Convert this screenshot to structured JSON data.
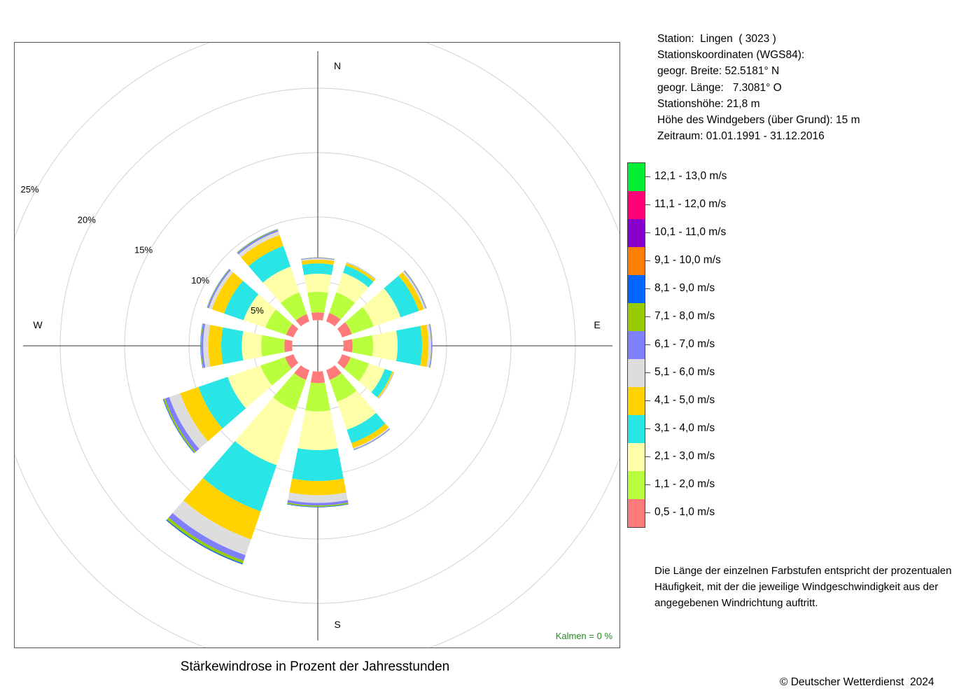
{
  "chart_data": {
    "type": "polar-bar",
    "title": "Stärkewindrose in Prozent der Jahresstunden",
    "directions": [
      0,
      30,
      60,
      90,
      120,
      150,
      180,
      210,
      240,
      270,
      300,
      330
    ],
    "direction_labels": [
      "N",
      "E",
      "S",
      "W"
    ],
    "radial_ticks": [
      "5%",
      "10%",
      "15%",
      "20%",
      "25%"
    ],
    "radial_tick_values": [
      5,
      10,
      15,
      20,
      25
    ],
    "inner_radius_pct": 2.0,
    "calm_label": "Kalmen  =  0 %",
    "calm_color": "#228B22",
    "series": [
      {
        "name": "0,5 - 1,0 m/s",
        "color": "#FF7B7B",
        "values": [
          0.6,
          0.7,
          0.8,
          0.7,
          0.7,
          0.8,
          0.9,
          0.8,
          0.7,
          0.6,
          0.6,
          0.6
        ]
      },
      {
        "name": "1,1 - 2,0 m/s",
        "color": "#B9FF3E",
        "values": [
          1.6,
          1.7,
          1.8,
          1.6,
          1.5,
          1.8,
          2.2,
          2.5,
          2.0,
          1.8,
          1.7,
          1.8
        ]
      },
      {
        "name": "2,1 - 3,0 m/s",
        "color": "#FFFFAA",
        "values": [
          1.4,
          1.6,
          2.2,
          1.9,
          1.3,
          2.3,
          3.0,
          4.5,
          2.7,
          1.5,
          1.8,
          2.1
        ]
      },
      {
        "name": "3,1 - 4,0 m/s",
        "color": "#2AE5E5",
        "values": [
          0.8,
          0.6,
          1.5,
          1.9,
          0.6,
          1.1,
          2.4,
          3.8,
          2.4,
          1.6,
          1.6,
          1.7
        ]
      },
      {
        "name": "4,1 - 5,0 m/s",
        "color": "#FFD200",
        "values": [
          0.3,
          0.2,
          0.4,
          0.5,
          0.1,
          0.4,
          1.1,
          2.3,
          1.5,
          1.0,
          1.0,
          0.9
        ]
      },
      {
        "name": "5,1 - 6,0 m/s",
        "color": "#DDDDDD",
        "values": [
          0.1,
          0.05,
          0.15,
          0.2,
          0.05,
          0.1,
          0.6,
          1.3,
          0.9,
          0.4,
          0.25,
          0.3
        ]
      },
      {
        "name": "6,1 - 7,0 m/s",
        "color": "#8080FF",
        "values": [
          0.05,
          0.02,
          0.05,
          0.06,
          0.02,
          0.05,
          0.2,
          0.45,
          0.35,
          0.15,
          0.1,
          0.12
        ]
      },
      {
        "name": "7,1 - 8,0 m/s",
        "color": "#99CC00",
        "values": [
          0.02,
          0.01,
          0.03,
          0.03,
          0.01,
          0.02,
          0.1,
          0.22,
          0.12,
          0.05,
          0.04,
          0.05
        ]
      },
      {
        "name": "8,1 - 9,0 m/s",
        "color": "#0066FF",
        "values": [
          0.0,
          0.0,
          0.01,
          0.01,
          0.0,
          0.01,
          0.04,
          0.08,
          0.05,
          0.02,
          0.02,
          0.02
        ]
      },
      {
        "name": "9,1 - 10,0 m/s",
        "color": "#FF8000",
        "values": [
          0,
          0,
          0,
          0,
          0,
          0,
          0,
          0.01,
          0,
          0,
          0,
          0
        ]
      },
      {
        "name": "10,1 - 11,0 m/s",
        "color": "#8800CC",
        "values": [
          0,
          0,
          0,
          0,
          0,
          0,
          0,
          0,
          0,
          0,
          0,
          0
        ]
      },
      {
        "name": "11,1 - 12,0 m/s",
        "color": "#FF0077",
        "values": [
          0,
          0,
          0,
          0,
          0,
          0,
          0,
          0,
          0,
          0,
          0,
          0
        ]
      },
      {
        "name": "12,1 - 13,0 m/s",
        "color": "#00EE33",
        "values": [
          0,
          0,
          0,
          0,
          0,
          0,
          0,
          0,
          0,
          0,
          0,
          0
        ]
      }
    ]
  },
  "station": {
    "line1": "Station:  Lingen  ( 3023 )",
    "line2": "Stationskoordinaten (WGS84):",
    "line3": "geogr. Breite: 52.5181° N",
    "line4": "geogr. Länge:   7.3081° O",
    "line5": "Stationshöhe: 21,8 m",
    "line6": "Höhe des Windgebers (über Grund): 15 m",
    "line7": "Zeitraum: 01.01.1991 - 31.12.2016"
  },
  "note": "Die Länge der einzelnen Farbstufen entspricht der prozentualen Häufigkeit, mit der die jeweilige Windgeschwindigkeit aus der angegebenen Windrichtung auftritt.",
  "copyright": "© Deutscher Wetterdienst  2024"
}
